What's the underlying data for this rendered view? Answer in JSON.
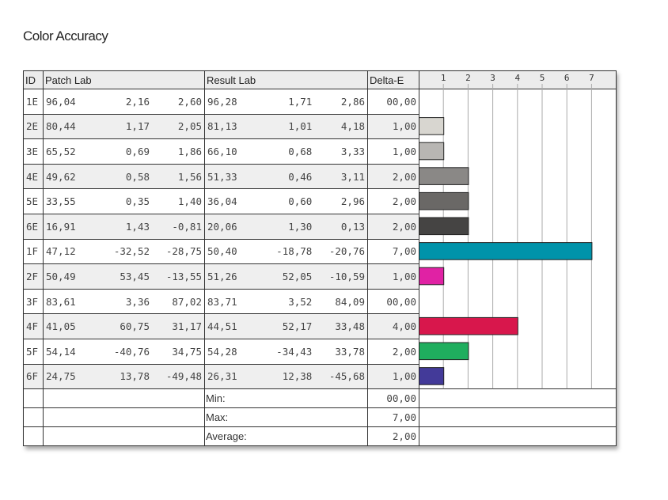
{
  "title": "Color Accuracy",
  "headers": {
    "id": "ID",
    "patch": "Patch Lab",
    "result": "Result Lab",
    "delta": "Delta-E"
  },
  "rows": [
    {
      "id": "1E",
      "patch": [
        "96,04",
        "2,16",
        "2,60"
      ],
      "result": [
        "96,28",
        "1,71",
        "2,86"
      ],
      "delta": "00,00"
    },
    {
      "id": "2E",
      "patch": [
        "80,44",
        "1,17",
        "2,05"
      ],
      "result": [
        "81,13",
        "1,01",
        "4,18"
      ],
      "delta": "1,00"
    },
    {
      "id": "3E",
      "patch": [
        "65,52",
        "0,69",
        "1,86"
      ],
      "result": [
        "66,10",
        "0,68",
        "3,33"
      ],
      "delta": "1,00"
    },
    {
      "id": "4E",
      "patch": [
        "49,62",
        "0,58",
        "1,56"
      ],
      "result": [
        "51,33",
        "0,46",
        "3,11"
      ],
      "delta": "2,00"
    },
    {
      "id": "5E",
      "patch": [
        "33,55",
        "0,35",
        "1,40"
      ],
      "result": [
        "36,04",
        "0,60",
        "2,96"
      ],
      "delta": "2,00"
    },
    {
      "id": "6E",
      "patch": [
        "16,91",
        "1,43",
        "-0,81"
      ],
      "result": [
        "20,06",
        "1,30",
        "0,13"
      ],
      "delta": "2,00"
    },
    {
      "id": "1F",
      "patch": [
        "47,12",
        "-32,52",
        "-28,75"
      ],
      "result": [
        "50,40",
        "-18,78",
        "-20,76"
      ],
      "delta": "7,00"
    },
    {
      "id": "2F",
      "patch": [
        "50,49",
        "53,45",
        "-13,55"
      ],
      "result": [
        "51,26",
        "52,05",
        "-10,59"
      ],
      "delta": "1,00"
    },
    {
      "id": "3F",
      "patch": [
        "83,61",
        "3,36",
        "87,02"
      ],
      "result": [
        "83,71",
        "3,52",
        "84,09"
      ],
      "delta": "00,00"
    },
    {
      "id": "4F",
      "patch": [
        "41,05",
        "60,75",
        "31,17"
      ],
      "result": [
        "44,51",
        "52,17",
        "33,48"
      ],
      "delta": "4,00"
    },
    {
      "id": "5F",
      "patch": [
        "54,14",
        "-40,76",
        "34,75"
      ],
      "result": [
        "54,28",
        "-34,43",
        "33,78"
      ],
      "delta": "2,00"
    },
    {
      "id": "6F",
      "patch": [
        "24,75",
        "13,78",
        "-49,48"
      ],
      "result": [
        "26,31",
        "12,38",
        "-45,68"
      ],
      "delta": "1,00"
    }
  ],
  "summary": [
    {
      "label": "Min:",
      "value": "00,00"
    },
    {
      "label": "Max:",
      "value": "7,00"
    },
    {
      "label": "Average:",
      "value": "2,00"
    }
  ],
  "chart_data": {
    "type": "bar",
    "orientation": "horizontal",
    "title": "Color Accuracy",
    "categories": [
      "1E",
      "2E",
      "3E",
      "4E",
      "5E",
      "6E",
      "1F",
      "2F",
      "3F",
      "4F",
      "5F",
      "6F"
    ],
    "values": [
      0,
      1,
      1,
      2,
      2,
      2,
      7,
      1,
      0,
      4,
      2,
      1
    ],
    "colors": [
      "#ffffff",
      "#d8d6d0",
      "#b8b6b3",
      "#8a8886",
      "#6a6866",
      "#454443",
      "#0093aa",
      "#e022a4",
      "#ffffff",
      "#d8174c",
      "#1fae5e",
      "#433a99"
    ],
    "xlim": [
      0,
      7.95
    ],
    "ticks": [
      "1",
      "2",
      "3",
      "4",
      "5",
      "6",
      "7"
    ],
    "grid": true
  }
}
